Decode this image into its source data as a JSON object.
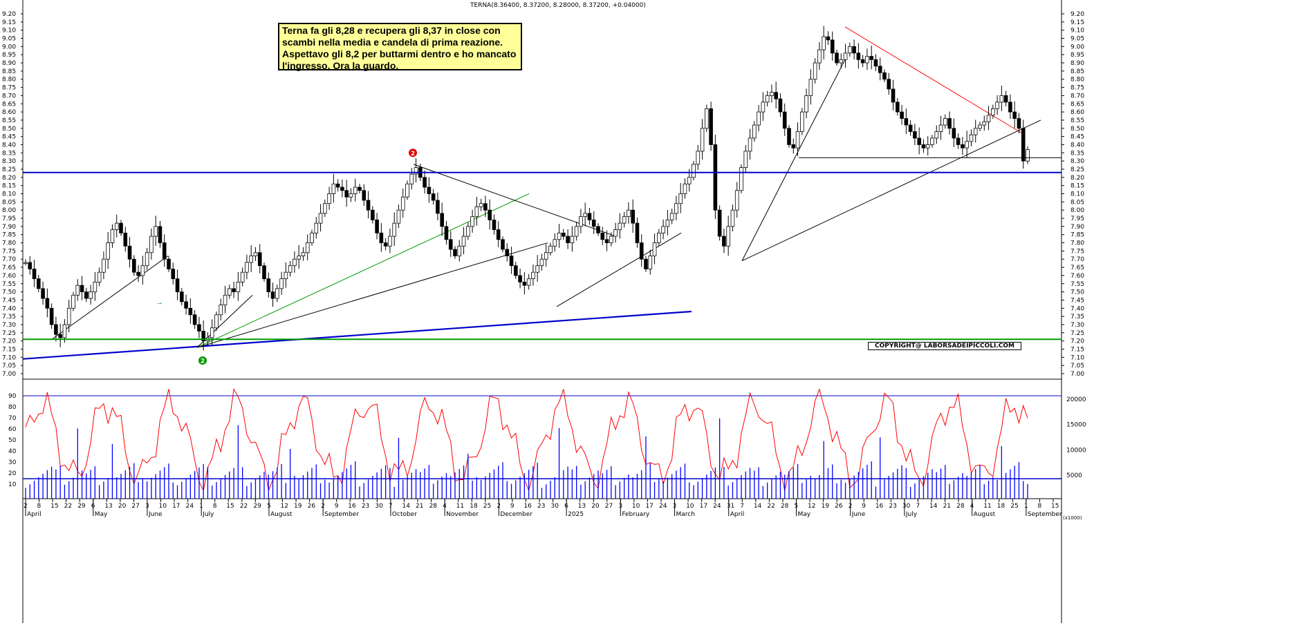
{
  "header": "TERNA(8.36400, 8.37200, 8.28000, 8.37200, +0.04000)",
  "note": "Terna fa gli 8,28 e recupera gli 8,37 in close con scambi nella media e candela di prima reazione. Aspettavo gli 8,2 per buttarmi dentro e ho mancato l'ingresso. Ora la guardo.",
  "copyright": "COPYRIGHT@ LABORSADEIPICCOLI.COM",
  "vol_unit": "(x1000)",
  "colors": {
    "candle": "#000000",
    "support": "#0000cc",
    "green": "#009900",
    "osc": "#ff0000",
    "vol": "#0000ff",
    "resistance": "#ff0000"
  },
  "chart_data": [
    {
      "type": "candlestick",
      "name": "TERNA",
      "ylim": [
        6.95,
        9.25
      ],
      "yticks": [
        "7.00",
        "7.05",
        "7.10",
        "7.15",
        "7.20",
        "7.25",
        "7.30",
        "7.35",
        "7.40",
        "7.45",
        "7.50",
        "7.55",
        "7.60",
        "7.65",
        "7.70",
        "7.75",
        "7.80",
        "7.85",
        "7.90",
        "7.95",
        "8.00",
        "8.05",
        "8.10",
        "8.15",
        "8.20",
        "8.25",
        "8.30",
        "8.35",
        "8.40",
        "8.45",
        "8.50",
        "8.55",
        "8.60",
        "8.65",
        "8.70",
        "8.75",
        "8.80",
        "8.85",
        "8.90",
        "8.95",
        "9.00",
        "9.05",
        "9.10",
        "9.15",
        "9.20"
      ],
      "day_labels": [
        "2",
        "8",
        "15",
        "22",
        "29",
        "6",
        "13",
        "20",
        "27",
        "3",
        "10",
        "17",
        "24",
        "1",
        "8",
        "15",
        "22",
        "29",
        "5",
        "12",
        "19",
        "26",
        "2",
        "9",
        "16",
        "23",
        "30",
        "7",
        "14",
        "21",
        "28",
        "4",
        "11",
        "18",
        "25",
        "2",
        "9",
        "16",
        "23",
        "30",
        "6",
        "13",
        "20",
        "27",
        "3",
        "10",
        "17",
        "24",
        "3",
        "10",
        "17",
        "24",
        "31",
        "7",
        "14",
        "22",
        "28",
        "5",
        "12",
        "19",
        "26",
        "2",
        "9",
        "16",
        "23",
        "30",
        "7",
        "14",
        "21",
        "28",
        "4",
        "11",
        "18",
        "25",
        "1",
        "8",
        "15"
      ],
      "month_labels": [
        "April",
        "May",
        "June",
        "July",
        "August",
        "September",
        "October",
        "November",
        "December",
        "2025",
        "February",
        "March",
        "April",
        "May",
        "June",
        "July",
        "August",
        "September"
      ],
      "horizontal_levels": [
        8.23,
        7.21,
        8.32
      ],
      "markers": [
        {
          "label": "2",
          "price": 8.35
        },
        {
          "label": "2",
          "price": 7.08
        }
      ],
      "closes": [
        7.68,
        7.64,
        7.58,
        7.52,
        7.46,
        7.4,
        7.3,
        7.24,
        7.22,
        7.3,
        7.4,
        7.48,
        7.54,
        7.5,
        7.46,
        7.5,
        7.56,
        7.62,
        7.7,
        7.8,
        7.88,
        7.92,
        7.86,
        7.78,
        7.7,
        7.62,
        7.6,
        7.66,
        7.74,
        7.84,
        7.9,
        7.8,
        7.7,
        7.64,
        7.58,
        7.5,
        7.44,
        7.4,
        7.36,
        7.3,
        7.26,
        7.2,
        7.22,
        7.28,
        7.36,
        7.42,
        7.48,
        7.52,
        7.5,
        7.56,
        7.62,
        7.68,
        7.72,
        7.74,
        7.66,
        7.58,
        7.5,
        7.46,
        7.52,
        7.58,
        7.62,
        7.66,
        7.7,
        7.72,
        7.74,
        7.8,
        7.86,
        7.92,
        7.98,
        8.04,
        8.1,
        8.16,
        8.14,
        8.12,
        8.08,
        8.1,
        8.14,
        8.12,
        8.06,
        8.0,
        7.94,
        7.86,
        7.8,
        7.78,
        7.84,
        7.92,
        8.0,
        8.08,
        8.16,
        8.22,
        8.26,
        8.2,
        8.14,
        8.1,
        8.06,
        7.98,
        7.9,
        7.82,
        7.76,
        7.72,
        7.78,
        7.84,
        7.9,
        7.96,
        8.02,
        8.04,
        8.0,
        7.94,
        7.88,
        7.82,
        7.76,
        7.72,
        7.66,
        7.6,
        7.56,
        7.54,
        7.58,
        7.62,
        7.66,
        7.7,
        7.74,
        7.78,
        7.82,
        7.86,
        7.84,
        7.8,
        7.84,
        7.9,
        7.96,
        7.98,
        7.94,
        7.9,
        7.86,
        7.82,
        7.8,
        7.84,
        7.88,
        7.92,
        7.96,
        8.0,
        7.92,
        7.8,
        7.7,
        7.64,
        7.72,
        7.8,
        7.86,
        7.9,
        7.94,
        7.98,
        8.04,
        8.1,
        8.16,
        8.2,
        8.28,
        8.36,
        8.5,
        8.62,
        8.4,
        8.0,
        7.84,
        7.78,
        7.9,
        8.0,
        8.12,
        8.26,
        8.36,
        8.44,
        8.52,
        8.6,
        8.66,
        8.7,
        8.72,
        8.68,
        8.6,
        8.5,
        8.4,
        8.38,
        8.48,
        8.6,
        8.7,
        8.8,
        8.9,
        8.98,
        9.06,
        9.04,
        8.96,
        8.9,
        8.92,
        8.96,
        9.0,
        8.96,
        8.92,
        8.9,
        8.94,
        8.92,
        8.88,
        8.84,
        8.8,
        8.74,
        8.66,
        8.6,
        8.56,
        8.52,
        8.48,
        8.44,
        8.4,
        8.38,
        8.4,
        8.44,
        8.48,
        8.52,
        8.56,
        8.5,
        8.44,
        8.4,
        8.38,
        8.42,
        8.46,
        8.5,
        8.52,
        8.54,
        8.58,
        8.62,
        8.66,
        8.7,
        8.66,
        8.6,
        8.56,
        8.5,
        8.3,
        8.37
      ]
    },
    {
      "type": "line",
      "name": "oscillator",
      "ylim": [
        0,
        100
      ],
      "yticks": [
        "10",
        "20",
        "30",
        "40",
        "50",
        "60",
        "70",
        "80",
        "90"
      ],
      "level": 90
    },
    {
      "type": "bar",
      "name": "volume",
      "ylim": [
        0,
        22000
      ],
      "yticks": [
        "5000",
        "10000",
        "15000",
        "20000"
      ],
      "avg_level": 4300
    }
  ]
}
